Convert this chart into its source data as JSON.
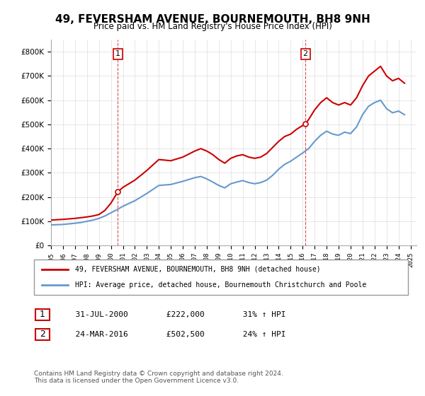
{
  "title": "49, FEVERSHAM AVENUE, BOURNEMOUTH, BH8 9NH",
  "subtitle": "Price paid vs. HM Land Registry's House Price Index (HPI)",
  "legend_line1": "49, FEVERSHAM AVENUE, BOURNEMOUTH, BH8 9NH (detached house)",
  "legend_line2": "HPI: Average price, detached house, Bournemouth Christchurch and Poole",
  "footnote": "Contains HM Land Registry data © Crown copyright and database right 2024.\nThis data is licensed under the Open Government Licence v3.0.",
  "table_rows": [
    {
      "num": "1",
      "date": "31-JUL-2000",
      "price": "£222,000",
      "change": "31% ↑ HPI"
    },
    {
      "num": "2",
      "date": "24-MAR-2016",
      "price": "£502,500",
      "change": "24% ↑ HPI"
    }
  ],
  "marker1_x": 2000.583,
  "marker1_y": 222000,
  "marker2_x": 2016.23,
  "marker2_y": 502500,
  "price_color": "#cc0000",
  "hpi_color": "#6699cc",
  "marker_border_color": "#cc0000",
  "ylim": [
    0,
    850000
  ],
  "xlim_start": 1995,
  "xlim_end": 2025.5,
  "price_data": {
    "x": [
      1995.0,
      1996.0,
      1997.0,
      1997.5,
      1998.0,
      1998.5,
      1999.0,
      1999.5,
      2000.0,
      2000.583,
      2001.0,
      2002.0,
      2003.0,
      2004.0,
      2005.0,
      2006.0,
      2007.0,
      2007.5,
      2008.0,
      2008.5,
      2009.0,
      2009.5,
      2010.0,
      2010.5,
      2011.0,
      2011.5,
      2012.0,
      2012.5,
      2013.0,
      2013.5,
      2014.0,
      2014.5,
      2015.0,
      2015.5,
      2016.23,
      2016.5,
      2017.0,
      2017.5,
      2018.0,
      2018.5,
      2019.0,
      2019.5,
      2020.0,
      2020.5,
      2021.0,
      2021.5,
      2022.0,
      2022.5,
      2023.0,
      2023.5,
      2024.0,
      2024.5
    ],
    "y": [
      105000,
      108000,
      112000,
      115000,
      118000,
      122000,
      128000,
      145000,
      175000,
      222000,
      240000,
      270000,
      310000,
      355000,
      350000,
      365000,
      390000,
      400000,
      390000,
      375000,
      355000,
      340000,
      360000,
      370000,
      375000,
      365000,
      360000,
      365000,
      380000,
      405000,
      430000,
      450000,
      460000,
      480000,
      502500,
      520000,
      560000,
      590000,
      610000,
      590000,
      580000,
      590000,
      580000,
      610000,
      660000,
      700000,
      720000,
      740000,
      700000,
      680000,
      690000,
      670000
    ]
  },
  "hpi_data": {
    "x": [
      1995.0,
      1996.0,
      1997.0,
      1997.5,
      1998.0,
      1998.5,
      1999.0,
      1999.5,
      2000.0,
      2000.5,
      2001.0,
      2002.0,
      2003.0,
      2004.0,
      2005.0,
      2006.0,
      2007.0,
      2007.5,
      2008.0,
      2008.5,
      2009.0,
      2009.5,
      2010.0,
      2010.5,
      2011.0,
      2011.5,
      2012.0,
      2012.5,
      2013.0,
      2013.5,
      2014.0,
      2014.5,
      2015.0,
      2015.5,
      2016.0,
      2016.5,
      2017.0,
      2017.5,
      2018.0,
      2018.5,
      2019.0,
      2019.5,
      2020.0,
      2020.5,
      2021.0,
      2021.5,
      2022.0,
      2022.5,
      2023.0,
      2023.5,
      2024.0,
      2024.5
    ],
    "y": [
      85000,
      87000,
      92000,
      95000,
      100000,
      105000,
      112000,
      122000,
      135000,
      148000,
      162000,
      185000,
      215000,
      248000,
      252000,
      265000,
      280000,
      285000,
      275000,
      262000,
      248000,
      238000,
      255000,
      262000,
      268000,
      260000,
      255000,
      260000,
      270000,
      290000,
      315000,
      335000,
      348000,
      365000,
      382000,
      400000,
      430000,
      455000,
      472000,
      460000,
      455000,
      468000,
      462000,
      490000,
      540000,
      575000,
      590000,
      600000,
      565000,
      548000,
      555000,
      540000
    ]
  }
}
